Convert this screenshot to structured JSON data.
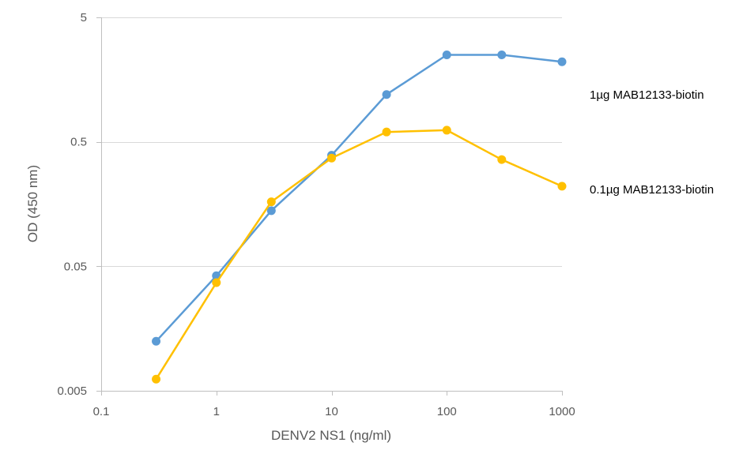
{
  "chart_data": {
    "type": "line",
    "xscale": "log",
    "yscale": "log",
    "xlim": [
      0.1,
      1000
    ],
    "ylim": [
      0.005,
      5
    ],
    "xticks": [
      "0.1",
      "1",
      "10",
      "100",
      "1000"
    ],
    "yticks": [
      "5",
      "0.5",
      "0.05",
      "0.005"
    ],
    "xlabel": "DENV2 NS1 (ng/ml)",
    "ylabel": "OD (450 nm)",
    "grid": "horizontal",
    "x": [
      0.3,
      1,
      3,
      10,
      30,
      100,
      300,
      1000
    ],
    "series": [
      {
        "name": "1µg MAB12133-biotin",
        "color": "#5b9bd5",
        "values": [
          0.0125,
          0.042,
          0.14,
          0.39,
          1.2,
          2.5,
          2.5,
          2.2
        ]
      },
      {
        "name": "0.1µg MAB12133-biotin",
        "color": "#ffc000",
        "values": [
          0.0062,
          0.037,
          0.165,
          0.37,
          0.6,
          0.62,
          0.36,
          0.22
        ]
      }
    ]
  }
}
